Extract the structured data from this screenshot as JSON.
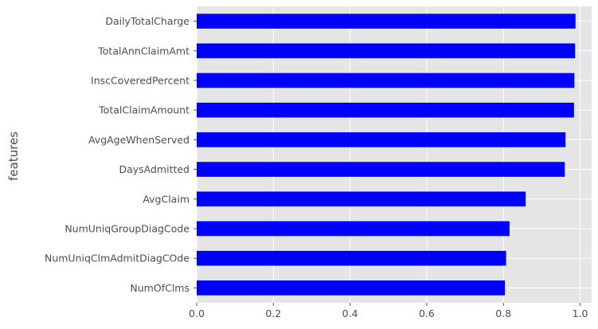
{
  "chart_data": {
    "type": "bar",
    "orientation": "horizontal",
    "title": "",
    "xlabel": "",
    "ylabel": "features",
    "xlim": [
      0,
      1.03
    ],
    "xticks": [
      0.0,
      0.2,
      0.4,
      0.6,
      0.8,
      1.0
    ],
    "xtick_labels": [
      "0.0",
      "0.2",
      "0.4",
      "0.6",
      "0.8",
      "1.0"
    ],
    "grid": true,
    "style": "ggplot",
    "bar_color": "#0000ff",
    "background_color": "#e5e5e5",
    "grid_color": "#ffffff",
    "categories": [
      "DailyTotalCharge",
      "TotalAnnClaimAmt",
      "InscCoveredPercent",
      "TotalClaimAmount",
      "AvgAgeWhenServed",
      "DaysAdmitted",
      "AvgClaim",
      "NumUniqGroupDiagCode",
      "NumUniqClmAdmitDiagCOde",
      "NumOfClms"
    ],
    "values": [
      0.988,
      0.987,
      0.985,
      0.984,
      0.962,
      0.96,
      0.858,
      0.816,
      0.807,
      0.804
    ]
  }
}
